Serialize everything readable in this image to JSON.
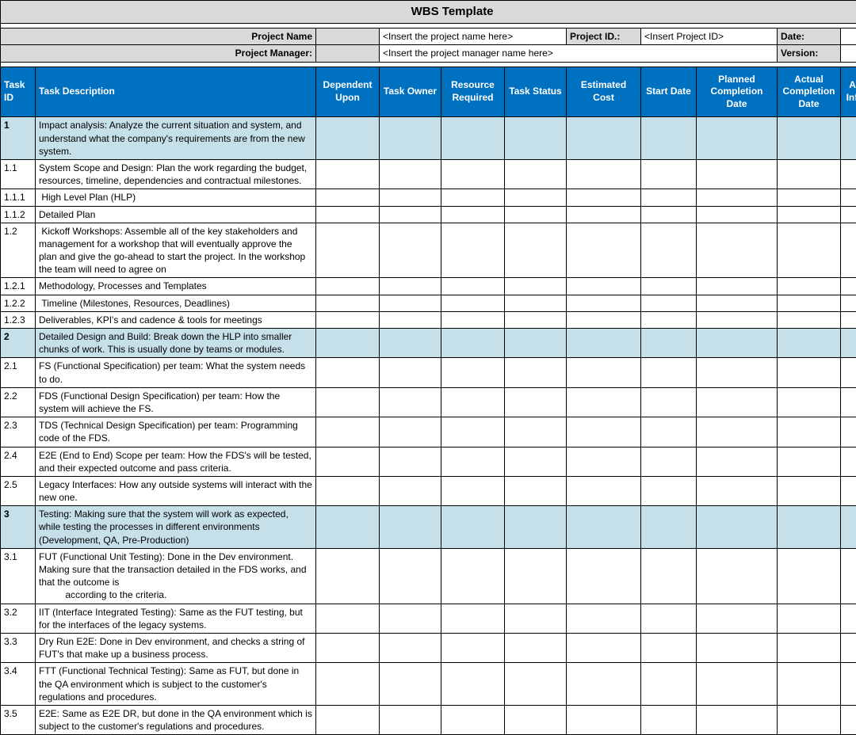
{
  "title": "WBS Template",
  "meta": {
    "project_name_label": "Project Name",
    "project_name_value": "<Insert the project name here>",
    "project_id_label": "Project ID.:",
    "project_id_value": "<Insert Project ID>",
    "date_label": "Date:",
    "date_value": "",
    "project_manager_label": "Project Manager:",
    "project_manager_value": "<Insert the project manager name here>",
    "version_label": "Version:",
    "version_value": ""
  },
  "columns": [
    "Task ID",
    "Task Description",
    "Dependent Upon",
    "Task Owner",
    "Resource Required",
    "Task Status",
    "Estimated Cost",
    "Start Date",
    "Planned Completion Date",
    "Actual Completion Date",
    "Additional Information"
  ],
  "rows": [
    {
      "phase": true,
      "id": "1",
      "desc": "Impact analysis: Analyze the current situation and system, and understand what the company's requirements are from the new system."
    },
    {
      "phase": false,
      "id": "1.1",
      "desc": "System Scope and Design: Plan the work regarding the budget, resources, timeline, dependencies and contractual milestones."
    },
    {
      "phase": false,
      "id": "1.1.1",
      "desc": " High Level Plan (HLP)"
    },
    {
      "phase": false,
      "id": "1.1.2",
      "desc": "Detailed Plan"
    },
    {
      "phase": false,
      "id": "1.2",
      "desc": " Kickoff Workshops: Assemble all of the key stakeholders and management for a workshop that will eventually approve the plan and give the go-ahead to start the project. In the workshop the team will need to agree on"
    },
    {
      "phase": false,
      "id": "1.2.1",
      "desc": "Methodology, Processes and Templates"
    },
    {
      "phase": false,
      "id": "1.2.2",
      "desc": " Timeline (Milestones, Resources, Deadlines)"
    },
    {
      "phase": false,
      "id": "1.2.3",
      "desc": "Deliverables, KPI's and cadence & tools for meetings"
    },
    {
      "phase": true,
      "id": "2",
      "desc": "Detailed Design and Build: Break down the HLP into smaller chunks of work. This is usually done by teams or modules."
    },
    {
      "phase": false,
      "id": "2.1",
      "desc": "FS (Functional Specification) per team: What the system needs to do."
    },
    {
      "phase": false,
      "id": "2.2",
      "desc": "FDS (Functional Design Specification) per team: How the system will achieve the FS."
    },
    {
      "phase": false,
      "id": "2.3",
      "desc": "TDS (Technical Design Specification) per team: Programming code of the FDS."
    },
    {
      "phase": false,
      "id": "2.4",
      "desc": "E2E (End to End) Scope per team: How the FDS's will be tested, and their expected outcome and pass criteria."
    },
    {
      "phase": false,
      "id": "2.5",
      "desc": "Legacy Interfaces: How any outside systems will interact with the new one."
    },
    {
      "phase": true,
      "id": "3",
      "desc": "Testing: Making sure that the system will work as expected, while testing the processes in different environments (Development, QA, Pre-Production)"
    },
    {
      "phase": false,
      "id": "3.1",
      "desc": "FUT (Functional Unit Testing): Done in the Dev environment. Making sure that the transaction detailed in the FDS works, and that the outcome is\n          according to the criteria."
    },
    {
      "phase": false,
      "id": "3.2",
      "desc": "IIT (Interface Integrated Testing): Same as the FUT testing, but for the interfaces of the legacy systems."
    },
    {
      "phase": false,
      "id": "3.3",
      "desc": "Dry Run E2E: Done in Dev environment, and checks a string of FUT's that make up a business process."
    },
    {
      "phase": false,
      "id": "3.4",
      "desc": "FTT (Functional Technical Testing): Same as FUT, but done in the QA environment which is subject to the customer's regulations and procedures."
    },
    {
      "phase": false,
      "id": "3.5",
      "desc": "E2E: Same as E2E DR, but done in the QA environment which is subject to the customer's regulations and procedures."
    }
  ],
  "colors": {
    "header_bg": "#0070c0",
    "header_fg": "#ffffff",
    "phase_bg": "#c5e0e8",
    "title_bg": "#d9d9d9",
    "border": "#000000"
  }
}
